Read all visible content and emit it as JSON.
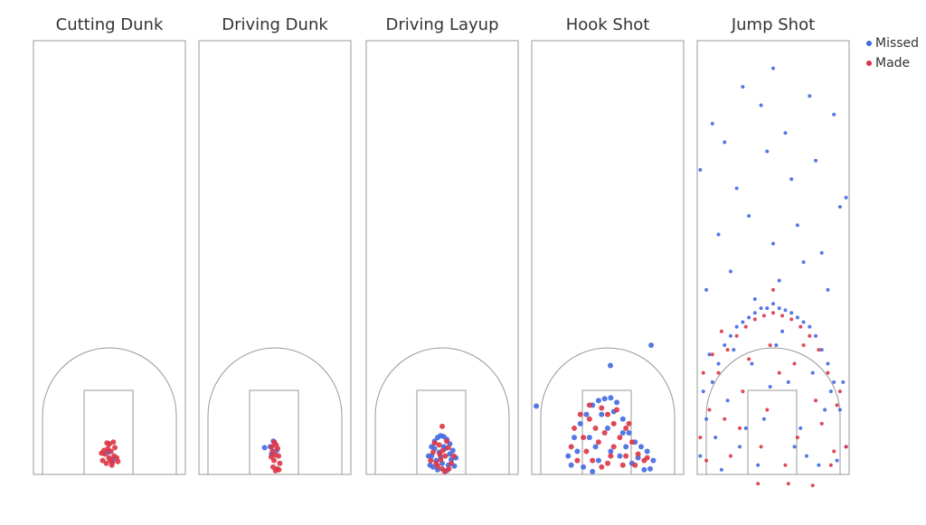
{
  "chart_data": [
    {
      "type": "scatter",
      "title": "Cutting Dunk",
      "xlim": [
        -25,
        25
      ],
      "ylim": [
        0,
        47
      ],
      "series": [
        {
          "name": "Missed",
          "color": "#4169e1",
          "x": [
            -0.4,
            1.1
          ],
          "y": [
            2.4,
            1.6
          ]
        },
        {
          "name": "Made",
          "color": "#dc3545",
          "x": [
            -1.5,
            -0.5,
            0.5,
            1.5,
            -2.2,
            2.4,
            -1,
            1,
            0,
            -0.2,
            1.8,
            -1.8,
            0.8,
            -0.8,
            2.8,
            -2.6,
            0.3,
            1.3
          ],
          "y": [
            2.2,
            2.8,
            2.5,
            2.0,
            1.5,
            1.8,
            1.2,
            1.3,
            3.3,
            1.8,
            2.9,
            2.6,
            1.0,
            3.4,
            1.4,
            2.3,
            1.5,
            3.5
          ]
        }
      ]
    },
    {
      "type": "scatter",
      "title": "Driving Dunk",
      "xlim": [
        -25,
        25
      ],
      "ylim": [
        0,
        47
      ],
      "series": [
        {
          "name": "Missed",
          "color": "#4169e1",
          "x": [
            -1.5,
            -0.5,
            0.6,
            -1.1,
            -3.4
          ],
          "y": [
            3.0,
            3.6,
            2.6,
            2.2,
            2.9
          ]
        },
        {
          "name": "Made",
          "color": "#dc3545",
          "x": [
            -0.8,
            0.4,
            1.2,
            -0.3,
            0.8,
            -1.2,
            0.2,
            1.6,
            -0.6,
            0.9,
            -1,
            0.1,
            1.3,
            -0.2
          ],
          "y": [
            2.5,
            3.2,
            2.0,
            1.5,
            0.6,
            1.9,
            0.4,
            1.2,
            0.8,
            2.8,
            3.0,
            2.1,
            0.5,
            3.5
          ]
        }
      ]
    },
    {
      "type": "scatter",
      "title": "Driving Layup",
      "xlim": [
        -25,
        25
      ],
      "ylim": [
        0,
        47
      ],
      "series": [
        {
          "name": "Missed",
          "color": "#4169e1",
          "x": [
            -4.5,
            -3.5,
            -2.5,
            -1.5,
            -0.5,
            0.5,
            1.5,
            2.5,
            3.5,
            4.5,
            -4,
            -3,
            -2,
            -1,
            0,
            1,
            2,
            3,
            4,
            -3.5,
            -1.5,
            0.5,
            2.5,
            -2.5,
            1.5,
            -0.5
          ],
          "y": [
            2.0,
            3.0,
            3.6,
            4.0,
            4.2,
            4.1,
            3.8,
            3.3,
            2.6,
            1.8,
            1.0,
            0.8,
            1.5,
            2.4,
            1.2,
            2.8,
            1.0,
            1.6,
            0.9,
            2.0,
            0.5,
            3.0,
            2.2,
            2.8,
            0.4,
            1.9
          ]
        },
        {
          "name": "Made",
          "color": "#dc3545",
          "x": [
            -3,
            -2,
            -1,
            0,
            1,
            2,
            3,
            -2.5,
            -0.5,
            1.5,
            0.2,
            -1.5,
            2.2,
            -3.8,
            3.8,
            0.8,
            -0.8,
            0
          ],
          "y": [
            2.4,
            1.2,
            3.2,
            0.6,
            2.0,
            2.9,
            1.2,
            3.4,
            1.6,
            3.6,
            2.6,
            0.9,
            0.6,
            1.5,
            2.0,
            0.3,
            2.2,
            5.2
          ]
        }
      ]
    },
    {
      "type": "scatter",
      "title": "Hook Shot",
      "xlim": [
        -25,
        25
      ],
      "ylim": [
        0,
        47
      ],
      "series": [
        {
          "name": "Missed",
          "color": "#4169e1",
          "x": [
            -13,
            -11,
            -9,
            -7,
            -5,
            -3,
            -1,
            1,
            3,
            5,
            7,
            9,
            11,
            13,
            15,
            -12,
            -8,
            -4,
            0,
            4,
            8,
            12,
            -10,
            -6,
            -2,
            2,
            6,
            10,
            14,
            -3,
            1,
            5,
            -5,
            0.9,
            14.3,
            -23.5
          ],
          "y": [
            2,
            4,
            5.5,
            6.5,
            7.5,
            8,
            8.2,
            8.3,
            7.8,
            6,
            4.5,
            3.5,
            3,
            2.5,
            1.5,
            1,
            0.8,
            3,
            5,
            2,
            1.2,
            0.5,
            2.5,
            4,
            6.5,
            6.8,
            3,
            1.8,
            0.6,
            1.5,
            2.5,
            4.5,
            0.3,
            11.8,
            14,
            7.4
          ]
        },
        {
          "name": "Made",
          "color": "#dc3545",
          "x": [
            -12,
            -10,
            -8,
            -6,
            -4,
            -2,
            0,
            2,
            4,
            6,
            8,
            10,
            12,
            -11,
            -7,
            -3,
            1,
            5,
            9,
            13,
            -9,
            -5,
            -1,
            3,
            7,
            -2,
            2,
            -6,
            6,
            0
          ],
          "y": [
            3,
            1.5,
            4,
            6,
            5,
            7.2,
            6.5,
            5.5,
            4,
            2,
            3.5,
            2.2,
            1.5,
            5,
            2.5,
            3.5,
            2,
            1,
            1,
            1.8,
            6.5,
            1.5,
            4.5,
            7,
            5.5,
            0.8,
            3,
            7.5,
            5,
            1.2
          ]
        }
      ]
    },
    {
      "type": "scatter",
      "title": "Jump Shot",
      "xlim": [
        -25,
        25
      ],
      "ylim": [
        0,
        47
      ],
      "legend": "right",
      "series": [
        {
          "name": "Missed",
          "color": "#4169e1",
          "x": [
            -24,
            -22,
            -20,
            -18,
            -16,
            -14,
            -12,
            -10,
            -8,
            -6,
            -4,
            -2,
            0,
            2,
            4,
            6,
            8,
            10,
            12,
            14,
            16,
            18,
            20,
            22,
            24,
            -23,
            -19,
            -15,
            -11,
            -7,
            -3,
            1,
            5,
            9,
            13,
            17,
            21,
            -21,
            -13,
            -5,
            3,
            11,
            19,
            -17,
            -9,
            -1,
            7,
            15,
            23,
            -22,
            -14,
            -6,
            2,
            10,
            18,
            -18,
            -8,
            0,
            8,
            16,
            24,
            -24,
            -12,
            -2,
            6,
            14,
            22,
            -20,
            -4,
            4,
            20,
            -10,
            0,
            12,
            -16
          ],
          "y": [
            2,
            6,
            10,
            12,
            14,
            15,
            16,
            16.5,
            17,
            17.5,
            18,
            18,
            18.5,
            18,
            17.8,
            17.5,
            17,
            16.5,
            16,
            15,
            13.5,
            12,
            10,
            7,
            3,
            9,
            4,
            8,
            3,
            12,
            6,
            14,
            10,
            5,
            11,
            7,
            1.5,
            13,
            13.5,
            1,
            15.5,
            2,
            9,
            0.5,
            5,
            9.5,
            3,
            1,
            10,
            20,
            22,
            19,
            21,
            23,
            20,
            26,
            28,
            25,
            27,
            24,
            30,
            33,
            31,
            35,
            32,
            34,
            29,
            38,
            40,
            37,
            39,
            42,
            44,
            41,
            36
          ]
        },
        {
          "name": "Made",
          "color": "#dc3545",
          "x": [
            -24,
            -21,
            -18,
            -15,
            -12,
            -9,
            -6,
            -3,
            0,
            3,
            6,
            9,
            12,
            15,
            18,
            21,
            24,
            -22,
            -16,
            -10,
            -4,
            2,
            8,
            14,
            20,
            -20,
            -14,
            -8,
            -2,
            4,
            10,
            16,
            22,
            -23,
            -11,
            -1,
            7,
            19,
            -5,
            5,
            -17,
            13,
            0
          ],
          "y": [
            4,
            7,
            11,
            13.5,
            15,
            16,
            16.8,
            17.2,
            17.5,
            17.2,
            16.8,
            16,
            15,
            13.5,
            11,
            7.5,
            3,
            1.5,
            6,
            9,
            3,
            11,
            4,
            8,
            2.5,
            13,
            2,
            12.5,
            7,
            1,
            14,
            5.5,
            9,
            11,
            5,
            14,
            12,
            1,
            -1,
            -1,
            15.5,
            -1.2,
            20
          ]
        }
      ]
    }
  ]
}
